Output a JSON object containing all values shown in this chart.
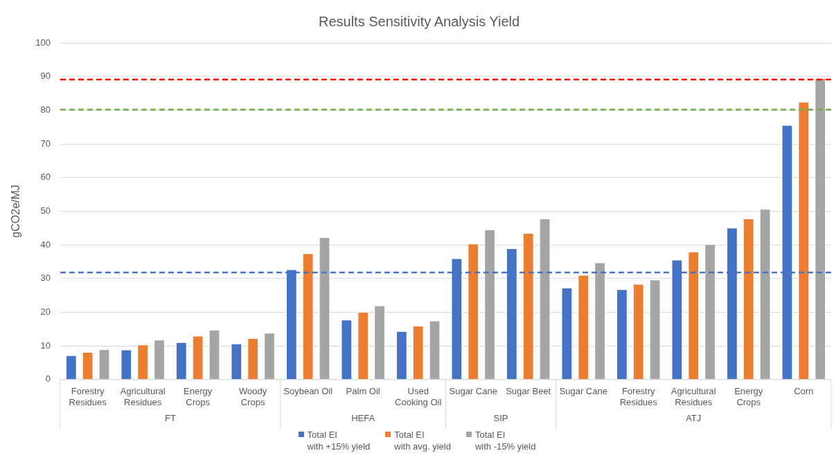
{
  "chart_data": {
    "type": "bar",
    "title": "Results Sensitivity Analysis Yield",
    "ylabel": "gCO2e/MJ",
    "categories": [
      "Forestry Residues",
      "Agricultural Residues",
      "Energy Crops",
      "Woody Crops",
      "Soybean Oil",
      "Palm Oil",
      "Used Cooking Oil",
      "Sugar Cane",
      "Sugar Beet",
      "Sugar Cane",
      "Forestry Residues",
      "Agricultural Residues",
      "Energy Crops",
      "Corn"
    ],
    "series": [
      {
        "name": "Total EI\nwith +15% yield",
        "color": "#4472c4",
        "values": [
          7.2,
          8.9,
          11.1,
          10.7,
          32.7,
          17.8,
          14.4,
          36.0,
          39.0,
          27.3,
          26.8,
          35.6,
          45.1,
          75.6
        ]
      },
      {
        "name": "Total EI\nwith avg. yield",
        "color": "#ed7d31",
        "values": [
          8.2,
          10.4,
          13.0,
          12.3,
          37.5,
          20.1,
          16.0,
          40.4,
          43.5,
          31.1,
          28.4,
          38.0,
          47.8,
          82.5
        ]
      },
      {
        "name": "Total EI\nwith -15% yield",
        "color": "#a5a5a5",
        "values": [
          9.0,
          11.8,
          14.8,
          13.9,
          42.3,
          22.0,
          17.5,
          44.6,
          47.8,
          34.8,
          29.7,
          40.2,
          50.7,
          89.6
        ]
      }
    ],
    "annotations": [
      "FT",
      "HEFA",
      "SIP",
      "ATJ"
    ],
    "ref_lines": [
      {
        "axis": "y",
        "value": 89.1,
        "color": "#ff0000",
        "line_style": "dashed"
      },
      {
        "axis": "y",
        "value": 80.2,
        "color": "#70ad47",
        "line_style": "dashed"
      },
      {
        "axis": "y",
        "value": 31.8,
        "color": "#4472c4",
        "line_style": "dashed"
      }
    ],
    "ylim": [
      0,
      100
    ],
    "yticks": [
      0,
      10,
      20,
      30,
      40,
      50,
      60,
      70,
      80,
      90,
      100
    ],
    "grid": "y",
    "legend": "bottom"
  }
}
